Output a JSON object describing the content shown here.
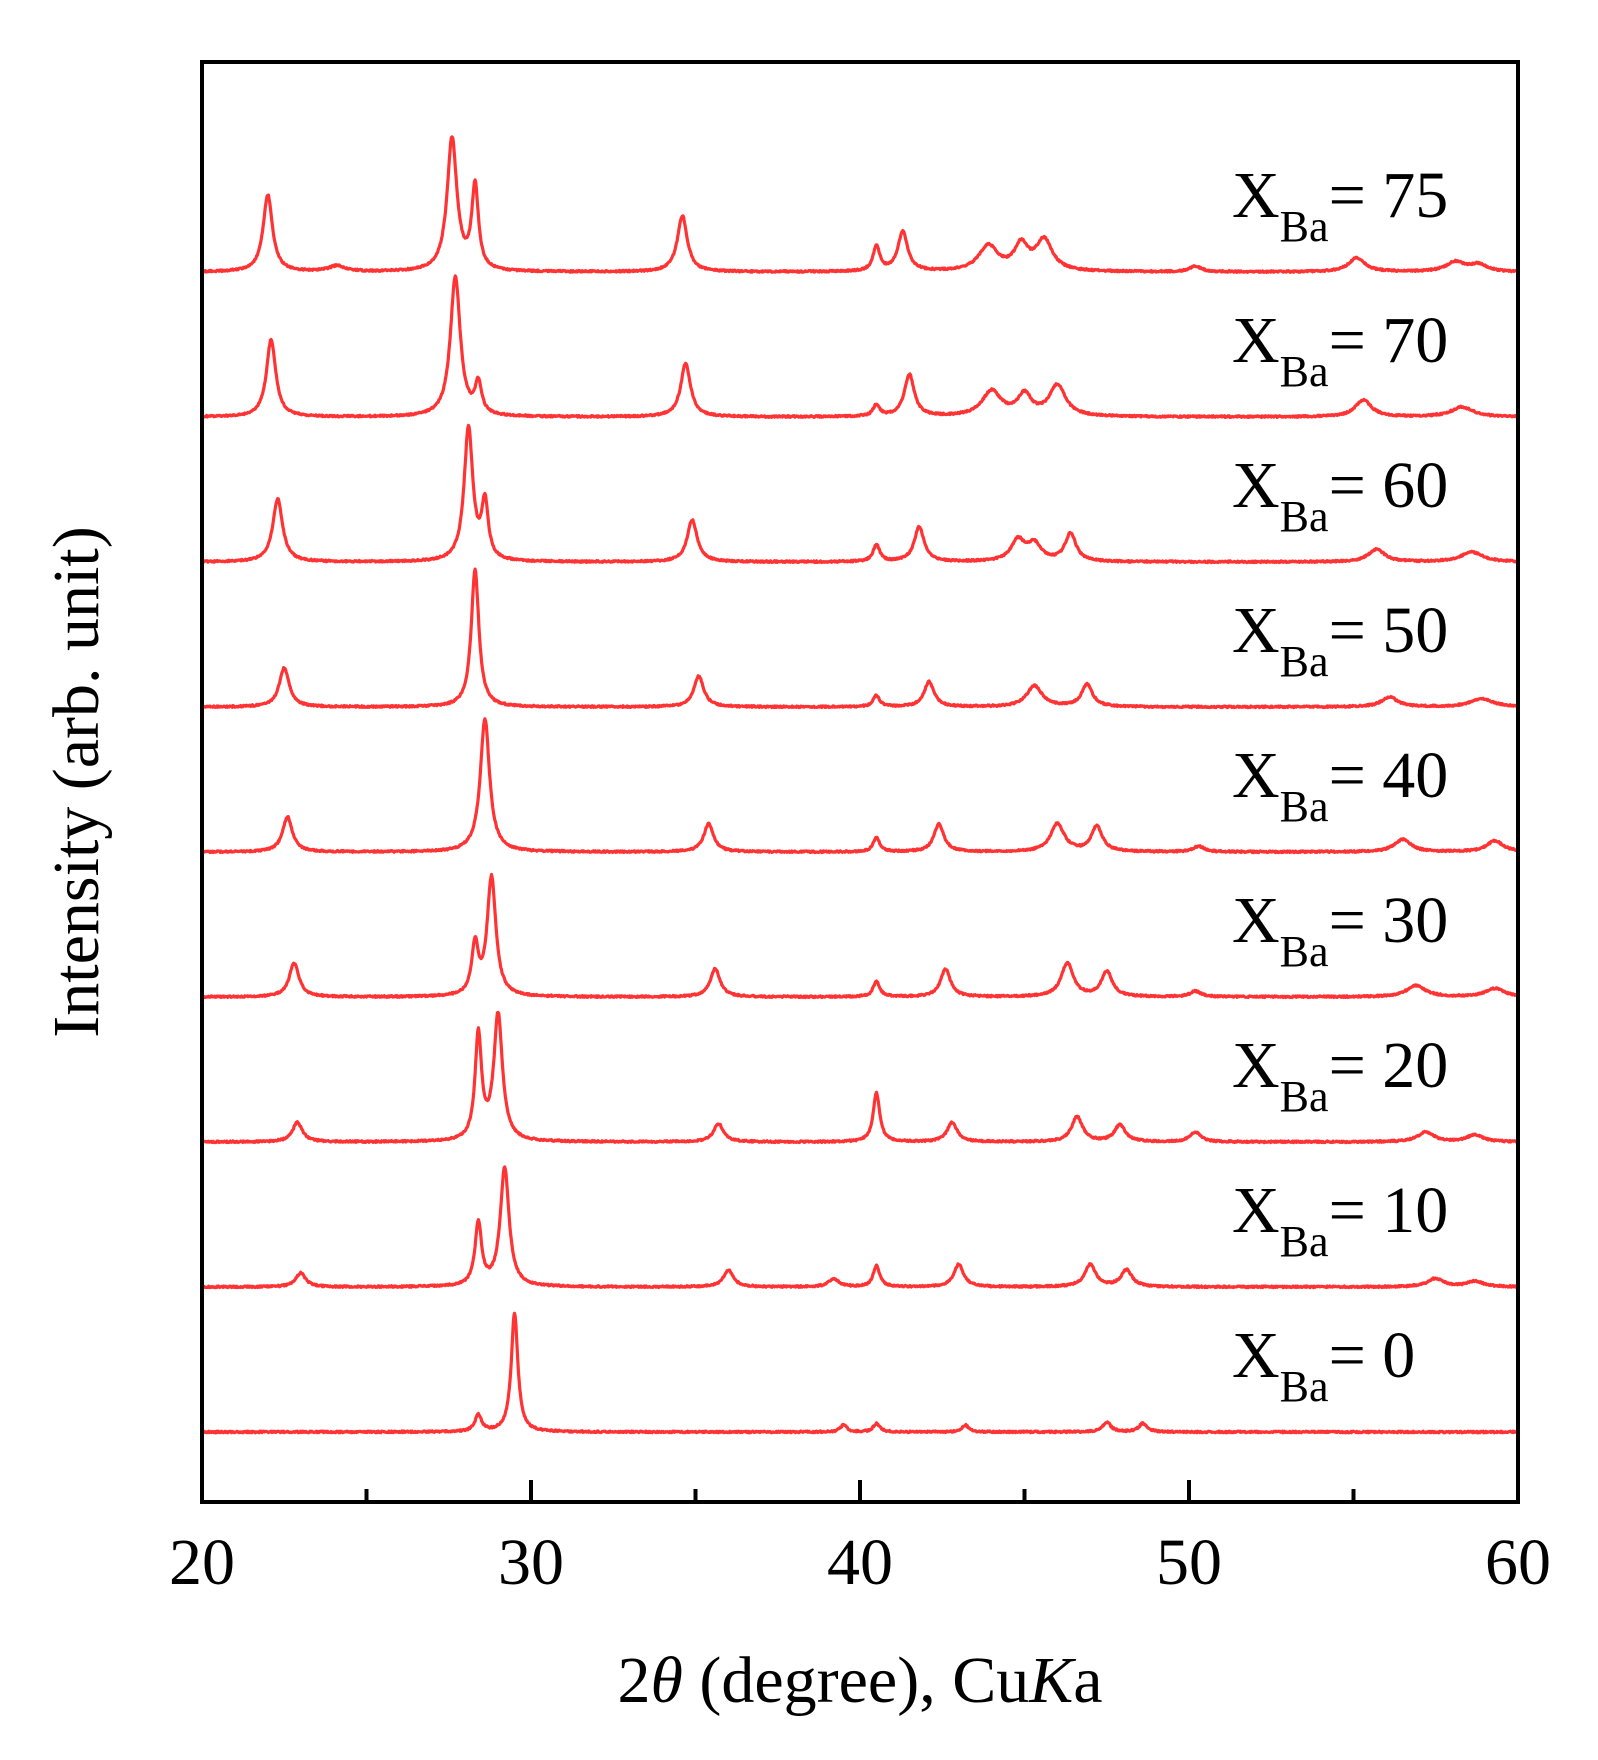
{
  "chart_data": {
    "type": "line",
    "xlabel": {
      "prefix": "2",
      "theta": "θ",
      "middle": " (degree), Cu",
      "italic_k": "K",
      "suffix": "a"
    },
    "ylabel": "Intensity (arb. unit)",
    "xlim": [
      20,
      60
    ],
    "x_ticks": [
      20,
      30,
      40,
      50,
      60
    ],
    "x_minor_ticks": [
      25,
      35,
      45,
      55
    ],
    "y_ticks_visible": false,
    "grid": false,
    "line_color": "#ff3333",
    "label_main": "X",
    "label_sub": "Ba",
    "label_eq": "= ",
    "series": [
      {
        "name": "X_Ba = 0",
        "value": "0",
        "peaks": [
          [
            28.4,
            0.12,
            0.12
          ],
          [
            29.5,
            0.85,
            0.12
          ],
          [
            39.5,
            0.05,
            0.12
          ],
          [
            40.5,
            0.06,
            0.12
          ],
          [
            43.2,
            0.05,
            0.12
          ],
          [
            47.5,
            0.07,
            0.15
          ],
          [
            48.6,
            0.06,
            0.15
          ]
        ]
      },
      {
        "name": "X_Ba = 10",
        "value": "10",
        "peaks": [
          [
            23.0,
            0.1,
            0.18
          ],
          [
            28.4,
            0.45,
            0.12
          ],
          [
            29.2,
            0.85,
            0.16
          ],
          [
            36.0,
            0.12,
            0.18
          ],
          [
            39.2,
            0.06,
            0.18
          ],
          [
            40.5,
            0.15,
            0.12
          ],
          [
            43.0,
            0.16,
            0.18
          ],
          [
            47.0,
            0.16,
            0.2
          ],
          [
            48.1,
            0.12,
            0.2
          ],
          [
            57.5,
            0.06,
            0.3
          ],
          [
            58.7,
            0.04,
            0.3
          ]
        ]
      },
      {
        "name": "X_Ba = 20",
        "value": "20",
        "peaks": [
          [
            22.9,
            0.14,
            0.18
          ],
          [
            28.4,
            0.75,
            0.12
          ],
          [
            29.0,
            0.9,
            0.16
          ],
          [
            35.7,
            0.13,
            0.18
          ],
          [
            40.5,
            0.35,
            0.12
          ],
          [
            42.8,
            0.14,
            0.18
          ],
          [
            46.6,
            0.18,
            0.2
          ],
          [
            47.9,
            0.12,
            0.2
          ],
          [
            50.2,
            0.07,
            0.2
          ],
          [
            57.2,
            0.07,
            0.3
          ],
          [
            58.7,
            0.05,
            0.3
          ]
        ]
      },
      {
        "name": "X_Ba = 30",
        "value": "30",
        "peaks": [
          [
            22.8,
            0.24,
            0.18
          ],
          [
            28.3,
            0.35,
            0.12
          ],
          [
            28.8,
            0.85,
            0.16
          ],
          [
            35.6,
            0.2,
            0.18
          ],
          [
            40.5,
            0.11,
            0.12
          ],
          [
            42.6,
            0.2,
            0.18
          ],
          [
            46.3,
            0.24,
            0.22
          ],
          [
            47.5,
            0.18,
            0.2
          ],
          [
            50.2,
            0.04,
            0.2
          ],
          [
            56.9,
            0.08,
            0.35
          ],
          [
            59.3,
            0.06,
            0.35
          ]
        ]
      },
      {
        "name": "X_Ba = 40",
        "value": "40",
        "peaks": [
          [
            22.6,
            0.25,
            0.18
          ],
          [
            28.6,
            0.95,
            0.17
          ],
          [
            35.4,
            0.2,
            0.18
          ],
          [
            40.5,
            0.1,
            0.12
          ],
          [
            42.4,
            0.2,
            0.18
          ],
          [
            46.0,
            0.2,
            0.25
          ],
          [
            47.2,
            0.18,
            0.2
          ],
          [
            50.3,
            0.04,
            0.2
          ],
          [
            56.5,
            0.09,
            0.3
          ],
          [
            59.3,
            0.08,
            0.3
          ]
        ]
      },
      {
        "name": "X_Ba = 50",
        "value": "50",
        "peaks": [
          [
            22.5,
            0.28,
            0.18
          ],
          [
            28.3,
            0.98,
            0.14
          ],
          [
            35.1,
            0.22,
            0.18
          ],
          [
            40.5,
            0.08,
            0.12
          ],
          [
            42.1,
            0.18,
            0.18
          ],
          [
            45.3,
            0.15,
            0.28
          ],
          [
            46.9,
            0.16,
            0.2
          ],
          [
            56.1,
            0.07,
            0.3
          ],
          [
            58.9,
            0.06,
            0.4
          ]
        ]
      },
      {
        "name": "X_Ba = 60",
        "value": "60",
        "peaks": [
          [
            22.3,
            0.45,
            0.18
          ],
          [
            28.1,
            0.95,
            0.16
          ],
          [
            28.6,
            0.4,
            0.12
          ],
          [
            34.9,
            0.3,
            0.18
          ],
          [
            40.5,
            0.12,
            0.12
          ],
          [
            41.8,
            0.25,
            0.18
          ],
          [
            44.8,
            0.15,
            0.25
          ],
          [
            45.3,
            0.12,
            0.25
          ],
          [
            46.4,
            0.2,
            0.2
          ],
          [
            55.7,
            0.09,
            0.3
          ],
          [
            58.6,
            0.07,
            0.4
          ]
        ]
      },
      {
        "name": "X_Ba = 70",
        "value": "70",
        "peaks": [
          [
            22.1,
            0.55,
            0.17
          ],
          [
            27.7,
            1.0,
            0.18
          ],
          [
            28.4,
            0.22,
            0.12
          ],
          [
            34.7,
            0.38,
            0.18
          ],
          [
            40.5,
            0.08,
            0.12
          ],
          [
            41.5,
            0.3,
            0.18
          ],
          [
            44.0,
            0.18,
            0.35
          ],
          [
            45.0,
            0.15,
            0.25
          ],
          [
            46.0,
            0.22,
            0.3
          ],
          [
            55.3,
            0.12,
            0.3
          ],
          [
            58.3,
            0.07,
            0.4
          ]
        ]
      },
      {
        "name": "X_Ba = 75",
        "value": "75",
        "peaks": [
          [
            22.0,
            0.55,
            0.17
          ],
          [
            24.1,
            0.04,
            0.3
          ],
          [
            27.6,
            0.95,
            0.18
          ],
          [
            28.3,
            0.6,
            0.12
          ],
          [
            34.6,
            0.4,
            0.18
          ],
          [
            40.5,
            0.18,
            0.12
          ],
          [
            41.3,
            0.28,
            0.18
          ],
          [
            43.9,
            0.18,
            0.35
          ],
          [
            44.9,
            0.18,
            0.25
          ],
          [
            45.6,
            0.22,
            0.3
          ],
          [
            50.2,
            0.04,
            0.2
          ],
          [
            55.1,
            0.1,
            0.3
          ],
          [
            58.1,
            0.07,
            0.35
          ],
          [
            58.8,
            0.05,
            0.3
          ]
        ]
      }
    ]
  }
}
